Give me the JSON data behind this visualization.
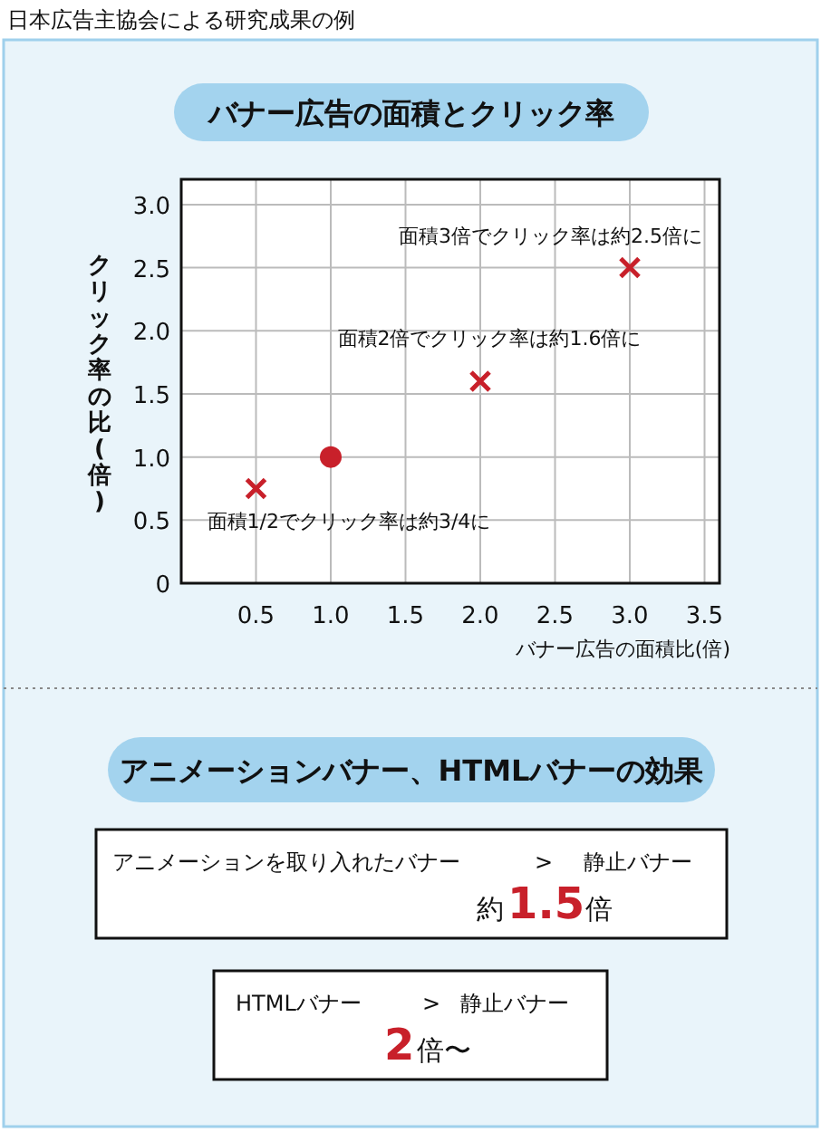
{
  "chart_data": [
    {
      "type": "scatter",
      "title": "バナー広告の面積とクリック率",
      "xlabel": "バナー広告の面積比(倍)",
      "ylabel": "クリック率の比(倍)",
      "annotations": [
        "日本広告主協会による研究成果の例",
        {
          "text": "面積3倍でクリック率は約2.5倍に",
          "x": 3.0,
          "y": 2.5
        },
        {
          "text": "面積2倍でクリック率は約1.6倍に",
          "x": 2.0,
          "y": 1.6
        },
        {
          "text": "面積1/2でクリック率は約3/4に",
          "x": 0.5,
          "y": 0.75
        }
      ],
      "series": [
        {
          "color": "#c8202a",
          "marker": "cross",
          "x": [
            0.5,
            2.0,
            3.0
          ],
          "values": [
            0.75,
            1.6,
            2.5
          ]
        },
        {
          "color": "#c8202a",
          "marker": "circle",
          "x": [
            1.0
          ],
          "values": [
            1.0
          ]
        }
      ],
      "xlim": [
        0,
        3.6
      ],
      "ylim": [
        0,
        3.2
      ],
      "xticks": [
        0.5,
        {
          "value": 1,
          "label": "1.0"
        },
        1.5,
        {
          "value": 2,
          "label": "2.0"
        },
        2.5,
        {
          "value": 3,
          "label": "3.0"
        },
        3.5
      ],
      "yticks": [
        0,
        0.5,
        {
          "value": 1,
          "label": "1.0"
        },
        1.5,
        {
          "value": 2,
          "label": "2.0"
        },
        2.5,
        {
          "value": 3,
          "label": "3.0"
        }
      ],
      "grid": true
    },
    {
      "type": "other",
      "title": "アニメーションバナー、HTMLバナーの効果",
      "annotations": [
        "アニメーションを取り入れたバナー",
        ">",
        "静止バナー",
        "約",
        "1.5",
        "倍",
        "HTMLバナー",
        ">",
        "静止バナー",
        "2",
        "倍〜"
      ],
      "colors": [
        "#111111",
        "#111111",
        "#111111",
        "#111111",
        "#c8202a",
        "#111111",
        "#111111",
        "#111111",
        "#111111",
        "#c8202a",
        "#111111"
      ]
    }
  ]
}
